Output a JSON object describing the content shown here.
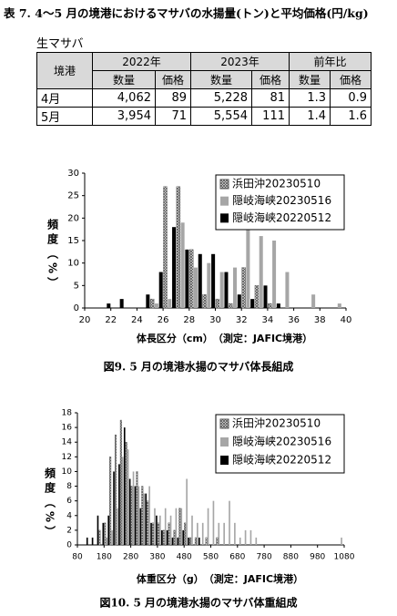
{
  "table": {
    "title": "表 7. 4～5 月の境港におけるマサバの水揚量(トン)と平均価格(円/kg)",
    "label": "生マサバ",
    "header": [
      "境港",
      "2022年",
      "2023年",
      "前年比"
    ],
    "subheader": [
      "数量",
      "価格",
      "数量",
      "価格",
      "数量",
      "価格"
    ],
    "rows": [
      [
        "4月",
        "4,062",
        "89",
        "5,228",
        "81",
        "1.3",
        "0.9"
      ],
      [
        "5月",
        "3,954",
        "71",
        "5,554",
        "111",
        "1.4",
        "1.6"
      ]
    ]
  },
  "chart_data": [
    {
      "type": "histogram",
      "caption": "図9. 5 月の境港水揚のマサバ体長組成",
      "x_label": "体長区分（cm）　（測定：JAFIC境港）",
      "y_label": "頻度（%）",
      "bins": [
        20,
        21,
        22,
        23,
        24,
        25,
        26,
        27,
        28,
        29,
        30,
        31,
        32,
        33,
        34,
        35,
        36,
        37,
        38,
        39,
        40
      ],
      "xlim": [
        20,
        40
      ],
      "xticks": [
        20,
        22,
        24,
        26,
        28,
        30,
        32,
        34,
        36,
        38,
        40
      ],
      "ylim": [
        0,
        30
      ],
      "yticks": [
        0,
        5,
        10,
        15,
        20,
        25,
        30
      ],
      "legend": "upper right",
      "series": [
        {
          "name": "浜田沖20230510",
          "color": "#555555",
          "pattern": "crosshatch",
          "values": [
            0,
            0,
            0,
            0,
            0,
            2,
            27,
            27,
            13,
            3,
            2,
            1,
            9,
            5,
            1,
            0,
            0,
            0,
            0,
            0
          ]
        },
        {
          "name": "隠岐海峡20230516",
          "color": "#a6a6a6",
          "values": [
            0,
            0,
            0,
            0,
            0,
            1,
            2,
            19,
            9,
            10,
            8,
            9,
            18,
            16,
            15,
            8,
            0,
            3,
            0,
            1
          ]
        },
        {
          "name": "隠岐海峡20220512",
          "color": "#000000",
          "values": [
            0,
            1,
            2,
            0,
            3,
            8,
            18,
            13,
            12,
            12,
            8,
            3,
            2,
            5,
            1,
            0,
            0,
            0,
            0,
            0
          ]
        }
      ]
    },
    {
      "type": "histogram",
      "caption": "図10. 5 月の境港水揚のマサバ体重組成",
      "x_label": "体重区分（g）　（測定：JAFIC境港）",
      "y_label": "頻度（%）",
      "bins": [
        80,
        100,
        120,
        140,
        160,
        180,
        200,
        220,
        240,
        260,
        280,
        300,
        320,
        340,
        360,
        380,
        400,
        420,
        440,
        460,
        480,
        500,
        520,
        540,
        560,
        580,
        600,
        620,
        640,
        660,
        680,
        700,
        720,
        740,
        760,
        780,
        800,
        820,
        840,
        860,
        880,
        900,
        920,
        940,
        960,
        980,
        1000,
        1020,
        1040,
        1060,
        1080
      ],
      "xlim": [
        80,
        1080
      ],
      "xticks": [
        80,
        180,
        280,
        380,
        480,
        580,
        680,
        780,
        880,
        980,
        1080
      ],
      "ylim": [
        0,
        18
      ],
      "yticks": [
        0,
        2,
        4,
        6,
        8,
        10,
        12,
        14,
        16,
        18
      ],
      "legend": "upper right",
      "series": [
        {
          "name": "浜田沖20230510",
          "color": "#555555",
          "pattern": "crosshatch",
          "values": [
            0,
            0,
            0,
            0,
            2,
            3,
            12,
            15,
            17,
            14,
            8,
            10,
            8,
            6,
            3,
            3,
            2,
            3,
            2,
            5,
            3,
            1,
            1,
            0,
            1,
            0,
            1,
            0,
            0,
            0,
            0,
            0,
            0,
            0,
            0,
            0,
            0,
            0,
            0,
            0,
            0,
            0,
            0,
            0,
            0,
            0,
            0,
            0,
            0,
            0
          ]
        },
        {
          "name": "隠岐海峡20230516",
          "color": "#a6a6a6",
          "values": [
            0,
            0,
            0,
            0,
            0,
            1,
            2,
            5,
            12,
            13,
            10,
            8,
            7,
            8,
            5,
            4,
            5,
            4,
            5,
            5,
            9,
            4,
            3,
            3,
            5,
            6,
            3,
            3,
            6,
            3,
            1,
            2,
            2,
            1,
            0,
            0,
            0,
            0,
            0,
            0,
            0,
            0,
            0,
            0,
            0,
            0,
            0,
            0,
            0,
            1
          ]
        },
        {
          "name": "隠岐海峡20220512",
          "color": "#000000",
          "values": [
            0,
            1,
            1,
            4,
            3,
            4,
            10,
            11,
            16,
            9,
            8,
            5,
            7,
            3,
            4,
            2,
            2,
            1,
            1,
            2,
            1,
            0,
            1,
            0,
            0,
            0,
            0,
            0,
            0,
            0,
            0,
            0,
            0,
            0,
            0,
            0,
            0,
            0,
            0,
            0,
            0,
            0,
            0,
            0,
            0,
            0,
            0,
            0,
            0,
            0
          ]
        }
      ]
    }
  ]
}
